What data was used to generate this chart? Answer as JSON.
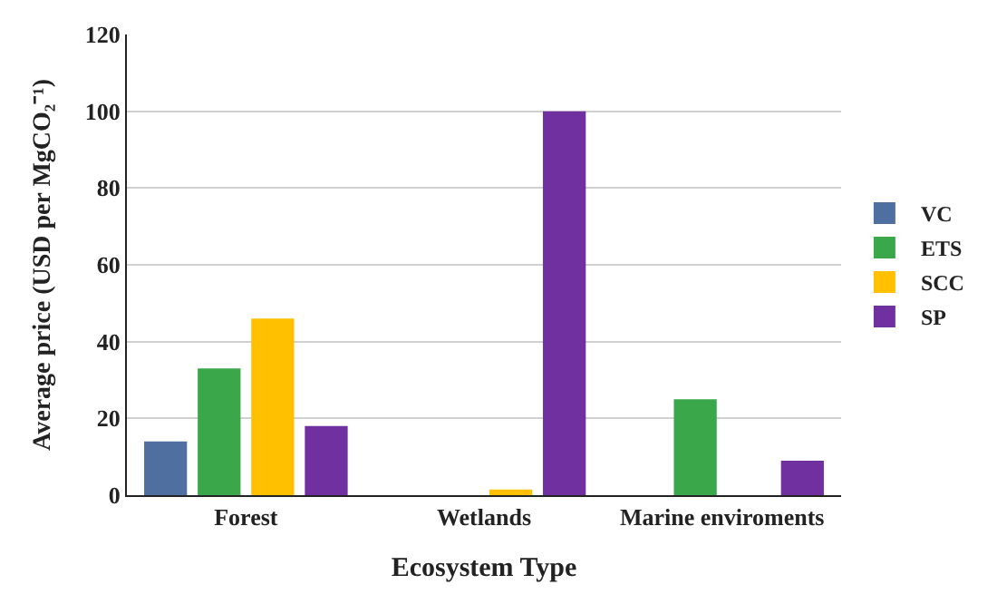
{
  "chart_data": {
    "type": "bar",
    "xlabel": "Ecosystem Type",
    "ylabel": "Average price (USD per MgCO₂⁻¹)",
    "categories": [
      "Forest",
      "Wetlands",
      "Marine enviroments"
    ],
    "series": [
      {
        "name": "VC",
        "color": "#4f6fa0",
        "values": [
          14,
          null,
          null
        ]
      },
      {
        "name": "ETS",
        "color": "#3aa84a",
        "values": [
          33,
          null,
          25
        ]
      },
      {
        "name": "SCC",
        "color": "#ffc000",
        "values": [
          46,
          1.5,
          null
        ]
      },
      {
        "name": "SP",
        "color": "#7030a0",
        "values": [
          18,
          100,
          9
        ]
      }
    ],
    "ylim": [
      0,
      120
    ],
    "yticks": [
      0,
      20,
      40,
      60,
      80,
      100,
      120
    ],
    "grid": "y",
    "legend": "right"
  }
}
